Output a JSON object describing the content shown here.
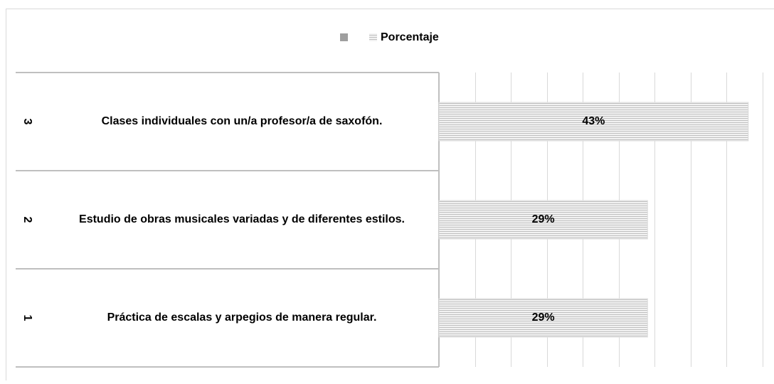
{
  "chart_data": {
    "type": "bar",
    "orientation": "horizontal",
    "series": [
      {
        "name": "Porcentaje",
        "color": "#d9d9d9",
        "values": [
          29,
          29,
          43
        ],
        "value_labels": [
          "29%",
          "29%",
          "43%"
        ]
      }
    ],
    "categories": [
      "Práctica de escalas y arpegios de manera regular.",
      "Estudio de obras musicales variadas y de diferentes estilos.",
      "Clases individuales con un/a profesor/a de saxofón."
    ],
    "category_groups": [
      "1",
      "2",
      "3"
    ],
    "xlim": [
      0,
      45
    ],
    "xticks": [
      0,
      5,
      10,
      15,
      20,
      25,
      30,
      35,
      40,
      45
    ],
    "grid": true,
    "legend": "top"
  }
}
